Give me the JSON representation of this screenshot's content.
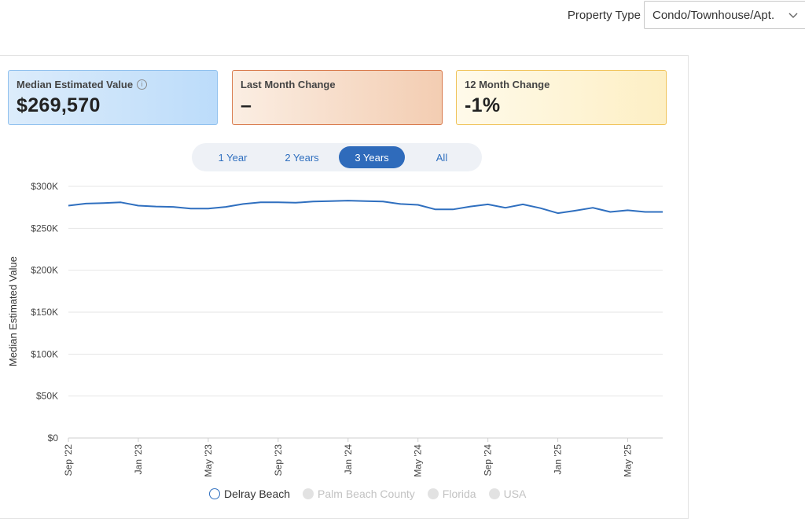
{
  "property_type": {
    "label": "Property Type",
    "selected": "Condo/Townhouse/Apt."
  },
  "cards": {
    "median": {
      "title": "Median Estimated Value",
      "value": "$269,570"
    },
    "last_month": {
      "title": "Last Month Change",
      "value": "–"
    },
    "twelve_month": {
      "title": "12 Month Change",
      "value": "-1%"
    }
  },
  "ranges": [
    "1 Year",
    "2 Years",
    "3 Years",
    "All"
  ],
  "active_range": "3 Years",
  "legend": [
    {
      "label": "Delray Beach",
      "active": true
    },
    {
      "label": "Palm Beach County",
      "active": false
    },
    {
      "label": "Florida",
      "active": false
    },
    {
      "label": "USA",
      "active": false
    }
  ],
  "colors": {
    "line": "#2f6fbf",
    "accent": "#2f6bbb"
  },
  "chart_data": {
    "type": "line",
    "ylabel": "Median Estimated Value",
    "ylim": [
      0,
      300000
    ],
    "ytick_values": [
      0,
      50000,
      100000,
      150000,
      200000,
      250000,
      300000
    ],
    "ytick_labels": [
      "$0",
      "$50K",
      "$100K",
      "$150K",
      "$200K",
      "$250K",
      "$300K"
    ],
    "x_labels": [
      "Sep '22",
      "Jan '23",
      "May '23",
      "Sep '23",
      "Jan '24",
      "May '24",
      "Sep '24",
      "Jan '25",
      "May '25"
    ],
    "x_label_index": [
      0,
      4,
      8,
      12,
      16,
      20,
      24,
      28,
      32
    ],
    "series": [
      {
        "name": "Delray Beach",
        "values": [
          277000,
          279500,
          280000,
          281000,
          277000,
          276000,
          275500,
          273500,
          273500,
          275500,
          279000,
          281000,
          281000,
          280500,
          282000,
          282500,
          283000,
          282500,
          282000,
          279000,
          278000,
          272500,
          272500,
          276000,
          278500,
          274500,
          278500,
          274000,
          268000,
          271000,
          274500,
          269500,
          271500,
          269500,
          269570
        ]
      }
    ]
  }
}
